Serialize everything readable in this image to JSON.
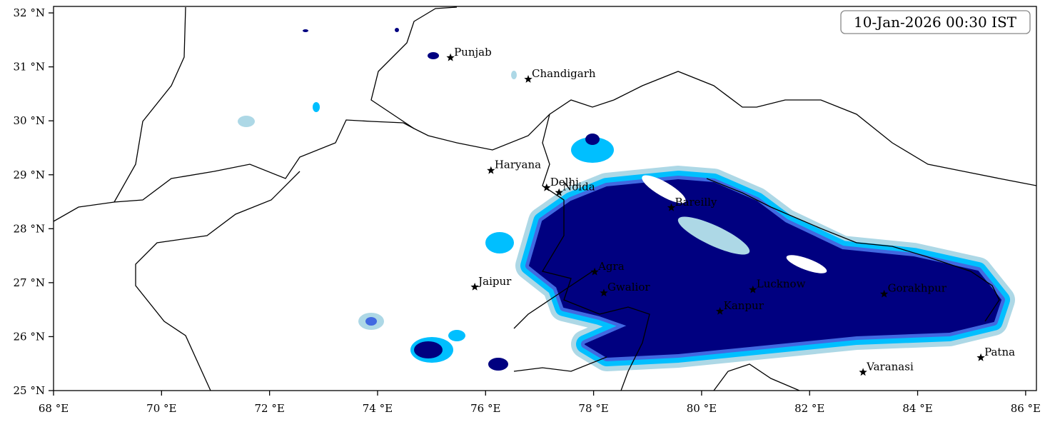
{
  "map": {
    "timestamp": "10-Jan-2026 00:30 IST",
    "xlim": [
      68,
      86.2
    ],
    "ylim": [
      25,
      32.12
    ],
    "xticks": [
      {
        "value": 68,
        "label": "68 °E"
      },
      {
        "value": 70,
        "label": "70 °E"
      },
      {
        "value": 72,
        "label": "72 °E"
      },
      {
        "value": 74,
        "label": "74 °E"
      },
      {
        "value": 76,
        "label": "76 °E"
      },
      {
        "value": 78,
        "label": "78 °E"
      },
      {
        "value": 80,
        "label": "80 °E"
      },
      {
        "value": 82,
        "label": "82 °E"
      },
      {
        "value": 84,
        "label": "84 °E"
      },
      {
        "value": 86,
        "label": "86 °E"
      }
    ],
    "yticks": [
      {
        "value": 25,
        "label": "25 °N"
      },
      {
        "value": 26,
        "label": "26 °N"
      },
      {
        "value": 27,
        "label": "27 °N"
      },
      {
        "value": 28,
        "label": "28 °N"
      },
      {
        "value": 29,
        "label": "29 °N"
      },
      {
        "value": 30,
        "label": "30 °N"
      },
      {
        "value": 31,
        "label": "31 °N"
      },
      {
        "value": 32,
        "label": "32 °N"
      }
    ],
    "cities": [
      {
        "name": "Punjab",
        "lon": 75.35,
        "lat": 31.17
      },
      {
        "name": "Chandigarh",
        "lon": 76.79,
        "lat": 30.77
      },
      {
        "name": "Haryana",
        "lon": 76.1,
        "lat": 29.08
      },
      {
        "name": "Delhi",
        "lon": 77.13,
        "lat": 28.76
      },
      {
        "name": "Noida",
        "lon": 77.36,
        "lat": 28.67
      },
      {
        "name": "Bareilly",
        "lon": 79.44,
        "lat": 28.39
      },
      {
        "name": "Agra",
        "lon": 78.02,
        "lat": 27.2
      },
      {
        "name": "Jaipur",
        "lon": 75.8,
        "lat": 26.92
      },
      {
        "name": "Gwalior",
        "lon": 78.19,
        "lat": 26.81
      },
      {
        "name": "Lucknow",
        "lon": 80.95,
        "lat": 26.87
      },
      {
        "name": "Kanpur",
        "lon": 80.34,
        "lat": 26.47
      },
      {
        "name": "Gorakhpur",
        "lon": 83.38,
        "lat": 26.79
      },
      {
        "name": "Varanasi",
        "lon": 82.99,
        "lat": 25.34
      },
      {
        "name": "Patna",
        "lon": 85.17,
        "lat": 25.61
      }
    ]
  }
}
